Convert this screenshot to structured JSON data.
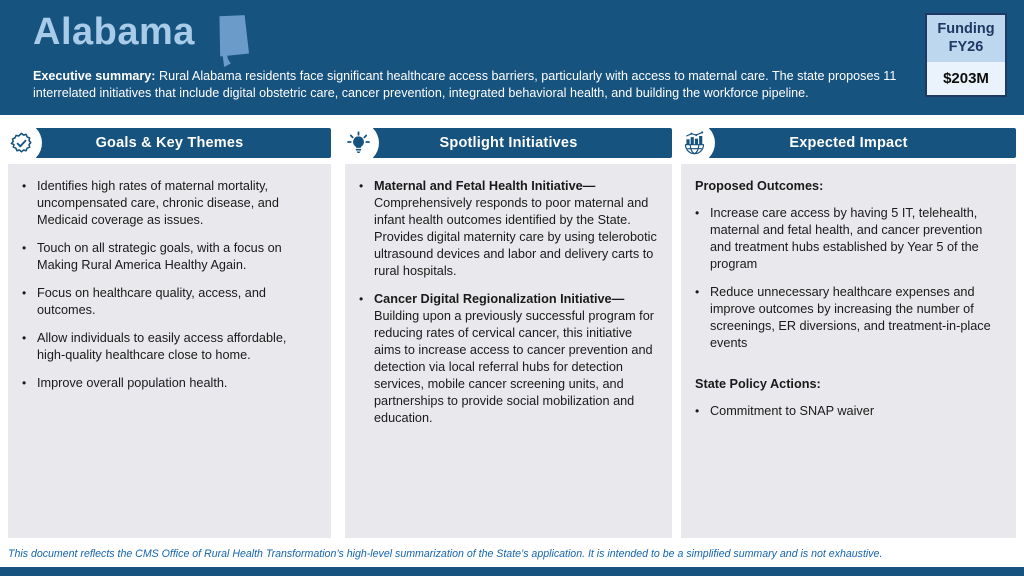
{
  "header": {
    "state_name": "Alabama",
    "state_icon": "alabama-state-shape",
    "exec_summary_label": "Executive summary:",
    "exec_summary_text": " Rural Alabama residents face significant healthcare access barriers, particularly with access to maternal care. The state proposes 11 interrelated initiatives that include digital obstetric care, cancer prevention, integrated behavioral health, and building the workforce pipeline.",
    "funding": {
      "label_line1": "Funding",
      "label_line2": "FY26",
      "amount": "$203M"
    }
  },
  "columns": [
    {
      "title": "Goals & Key Themes",
      "icon": "badge-check",
      "sections": [
        {
          "heading": null,
          "bullets": [
            {
              "text": "Identifies high rates of maternal mortality, uncompensated care, chronic disease, and Medicaid coverage as issues."
            },
            {
              "text": "Touch on all strategic goals, with a focus on Making Rural America Healthy Again."
            },
            {
              "text": "Focus on healthcare quality, access, and outcomes."
            },
            {
              "text": "Allow individuals to easily access affordable, high-quality healthcare close to home."
            },
            {
              "text": "Improve overall population health."
            }
          ]
        }
      ]
    },
    {
      "title": "Spotlight Initiatives",
      "icon": "lightbulb",
      "sections": [
        {
          "heading": null,
          "bullets": [
            {
              "bold": "Maternal and Fetal Health Initiative—",
              "text": "Comprehensively responds to poor maternal and infant health outcomes identified by the State. Provides digital maternity care by using telerobotic ultrasound devices and labor and delivery carts to rural hospitals."
            },
            {
              "bold": "Cancer Digital Regionalization Initiative—",
              "text": "Building upon a previously successful program for reducing rates of cervical cancer, this initiative aims to increase access to cancer prevention and detection via local referral hubs for detection services, mobile cancer screening units, and partnerships to provide social mobilization and education."
            }
          ]
        }
      ]
    },
    {
      "title": "Expected Impact",
      "icon": "chart-globe",
      "sections": [
        {
          "heading": "Proposed Outcomes:",
          "bullets": [
            {
              "text": "Increase care access by having 5 IT, telehealth, maternal and fetal health, and cancer prevention and treatment hubs established by Year 5 of the program"
            },
            {
              "text": "Reduce unnecessary healthcare expenses and improve outcomes by increasing the number of screenings, ER diversions, and treatment-in-place events"
            }
          ]
        },
        {
          "heading": "State Policy Actions:",
          "bullets": [
            {
              "text": "Commitment to SNAP waiver"
            }
          ]
        }
      ]
    }
  ],
  "footer": {
    "disclaimer": "This document reflects the CMS Office of Rural Health Transformation’s high-level summarization of the State’s application. It is intended to be a simplified summary and is not exhaustive."
  },
  "colors": {
    "primary_blue": "#17537F",
    "title_light_blue": "#A9CBEA",
    "state_shape_blue": "#6B9CC9",
    "panel_gray": "#E9E9ED",
    "badge_border": "#1F3864",
    "badge_top_bg": "#BDD7EE",
    "badge_bottom_bg": "#EAF3FB",
    "footer_blue": "#1565AF",
    "body_text": "#1A1A1A"
  }
}
